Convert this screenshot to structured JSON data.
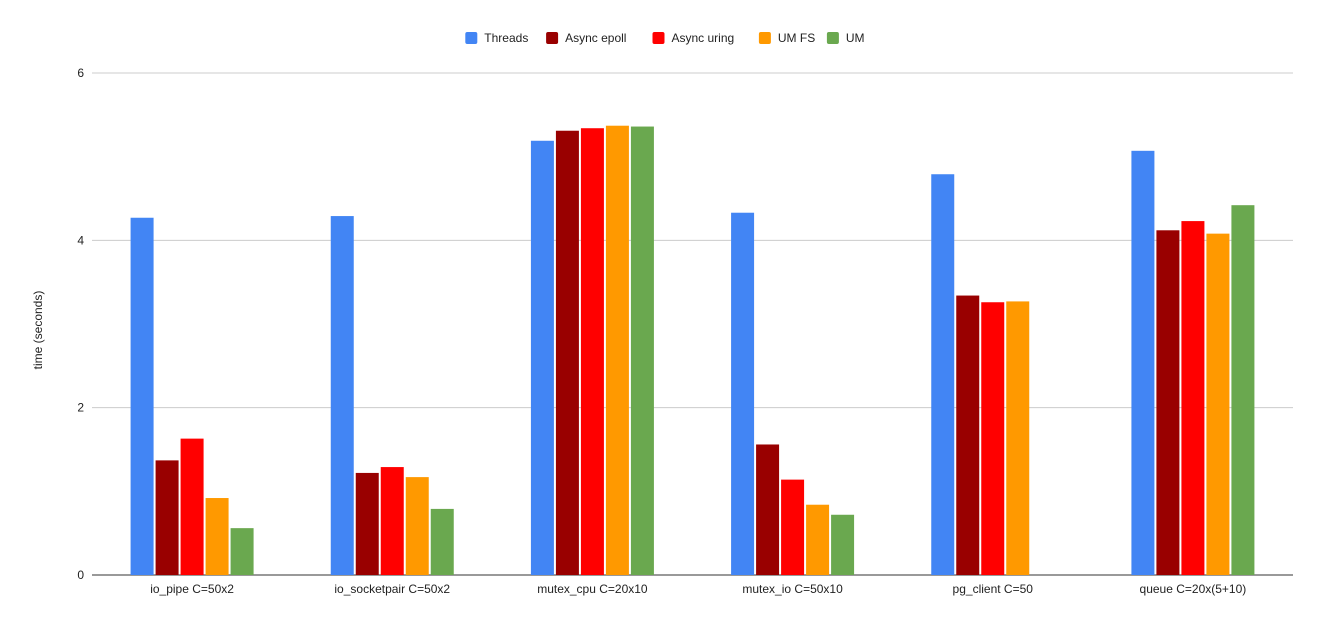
{
  "chart_data": {
    "type": "bar",
    "title": "",
    "xlabel": "",
    "ylabel": "time (seconds)",
    "ylim": [
      0,
      6
    ],
    "yticks": [
      0,
      2,
      4,
      6
    ],
    "grid": true,
    "legend_position": "top",
    "categories": [
      "io_pipe C=50x2",
      "io_socketpair C=50x2",
      "mutex_cpu C=20x10",
      "mutex_io C=50x10",
      "pg_client C=50",
      "queue C=20x(5+10)"
    ],
    "series": [
      {
        "name": "Threads",
        "color": "#4285F4",
        "values": [
          4.27,
          4.29,
          5.19,
          4.33,
          4.79,
          5.07
        ]
      },
      {
        "name": "Async epoll",
        "color": "#990000",
        "values": [
          1.37,
          1.22,
          5.31,
          1.56,
          3.34,
          4.12
        ]
      },
      {
        "name": "Async uring",
        "color": "#FF0000",
        "values": [
          1.63,
          1.29,
          5.34,
          1.14,
          3.26,
          4.23
        ]
      },
      {
        "name": "UM FS",
        "color": "#FF9900",
        "values": [
          0.92,
          1.17,
          5.37,
          0.84,
          3.27,
          4.08
        ]
      },
      {
        "name": "UM",
        "color": "#6AA84F",
        "values": [
          0.56,
          0.79,
          5.36,
          0.72,
          null,
          4.42
        ]
      }
    ]
  }
}
